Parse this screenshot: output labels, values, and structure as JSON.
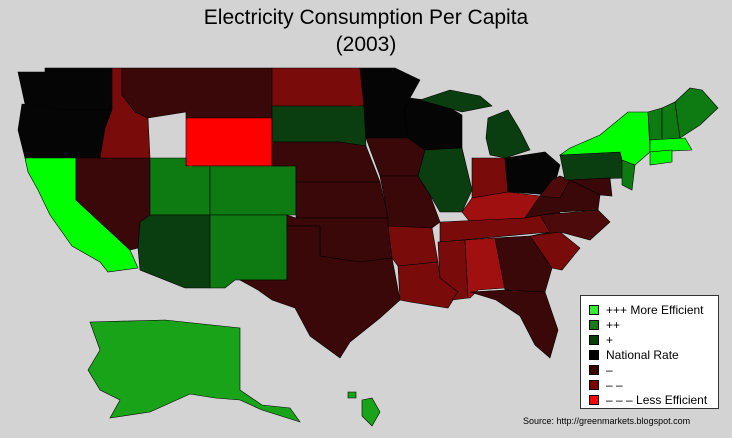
{
  "title_line1": "Electricity Consumption Per Capita",
  "title_line2": "(2003)",
  "source": "Source: http://greenmarkets.blogspot.com",
  "legend": [
    {
      "label": "+++ More Efficient",
      "color": "#33ee33"
    },
    {
      "label": "++",
      "color": "#1a7a1a"
    },
    {
      "label": "+",
      "color": "#0a3d0a"
    },
    {
      "label": "National Rate",
      "color": "#000000"
    },
    {
      "label": "–",
      "color": "#3a0000"
    },
    {
      "label": "– –",
      "color": "#7a0000"
    },
    {
      "label": "– – – Less Efficient",
      "color": "#ff0000"
    }
  ],
  "colors": {
    "more3": "#00ff00",
    "more2": "#0e7a12",
    "more1": "#0a3d10",
    "national": "#050505",
    "less1": "#3a0808",
    "less1b": "#4d0a0a",
    "less2": "#7a0b0b",
    "less2b": "#a01010",
    "less3": "#ff0000",
    "alaska": "#19a319",
    "hawaii": "#19a319"
  }
}
